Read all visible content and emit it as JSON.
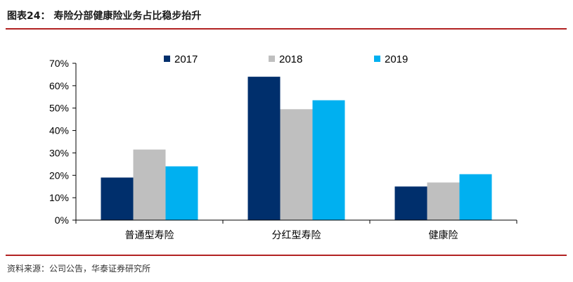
{
  "title": "图表24： 寿险分部健康险业务占比稳步抬升",
  "source": "资料来源：公司公告，华泰证券研究所",
  "chart_data": {
    "type": "bar",
    "categories": [
      "普通型寿险",
      "分红型寿险",
      "健康险"
    ],
    "series": [
      {
        "name": "2017",
        "color": "#002f6c",
        "values": [
          0.19,
          0.64,
          0.15
        ]
      },
      {
        "name": "2018",
        "color": "#bfbfbf",
        "values": [
          0.315,
          0.495,
          0.168
        ]
      },
      {
        "name": "2019",
        "color": "#00b0f0",
        "values": [
          0.24,
          0.535,
          0.205
        ]
      }
    ],
    "ylim": [
      0,
      0.7
    ],
    "yticks": [
      "0%",
      "10%",
      "20%",
      "30%",
      "40%",
      "50%",
      "60%",
      "70%"
    ],
    "grid": false,
    "legend": "top-center"
  }
}
